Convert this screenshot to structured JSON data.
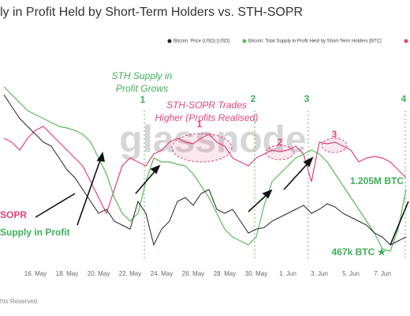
{
  "chart_data": {
    "type": "line",
    "title": "ly in Profit Held by Short-Term Holders vs. STH-SOPR",
    "footer": "hts Reserved.",
    "categories": [
      null,
      null,
      null,
      null,
      "16. May",
      null,
      null,
      null,
      "18. May",
      null,
      null,
      null,
      "20. May",
      null,
      null,
      null,
      "22. May",
      null,
      null,
      null,
      "24. May",
      null,
      null,
      null,
      "26. May",
      null,
      null,
      null,
      "28. May",
      null,
      null,
      null,
      "30. May",
      null,
      null,
      null,
      "1. Jun",
      null,
      null,
      null,
      "3. Jun",
      null,
      null,
      null,
      "5. Jun",
      null,
      null,
      null,
      "7. Jun",
      null,
      null,
      null
    ],
    "ylim": [
      0,
      270
    ],
    "series": [
      {
        "name": "Bitcoin: Price (USD) [USD]",
        "color": "#222222",
        "values": [
          210,
          195,
          180,
          170,
          160,
          150,
          145,
          130,
          115,
          105,
          90,
          75,
          60,
          65,
          50,
          45,
          40,
          75,
          60,
          20,
          40,
          50,
          75,
          80,
          70,
          85,
          90,
          65,
          60,
          65,
          50,
          35,
          40,
          42,
          50,
          55,
          60,
          65,
          70,
          60,
          65,
          72,
          68,
          60,
          55,
          50,
          45,
          35,
          30,
          20,
          25,
          30
        ]
      },
      {
        "name": "Bitcoin: Total Supply in Profit Held by Short-Term Holders [BTC]",
        "color": "#5cb85c",
        "values": [
          220,
          210,
          200,
          190,
          185,
          180,
          175,
          170,
          168,
          165,
          160,
          150,
          130,
          110,
          80,
          60,
          50,
          60,
          100,
          130,
          125,
          125,
          122,
          120,
          110,
          95,
          80,
          60,
          40,
          30,
          25,
          20,
          30,
          70,
          100,
          110,
          120,
          130,
          135,
          140,
          135,
          125,
          110,
          95,
          80,
          65,
          50,
          35,
          15,
          12,
          40,
          90
        ]
      },
      {
        "color": "#e0457b",
        "values": [
          155,
          150,
          140,
          155,
          165,
          170,
          160,
          150,
          140,
          130,
          120,
          100,
          80,
          60,
          90,
          120,
          130,
          125,
          120,
          135,
          140,
          150,
          155,
          150,
          148,
          155,
          160,
          150,
          145,
          130,
          125,
          120,
          130,
          135,
          140,
          138,
          140,
          145,
          135,
          100,
          150,
          148,
          150,
          145,
          140,
          125,
          130,
          132,
          130,
          125,
          115,
          105
        ]
      }
    ],
    "annotations": [
      {
        "text": "STH Supply in",
        "color": "#3fae5a"
      },
      {
        "text": "Profit Grows",
        "color": "#3fae5a"
      },
      {
        "text": "1",
        "color": "#3fae5a"
      },
      {
        "text": "STH-SOPR Trades",
        "color": "#e0457b"
      },
      {
        "text": "Higher (Profits Realised)",
        "color": "#e0457b"
      },
      {
        "text": "1",
        "color": "#e0457b"
      },
      {
        "text": "2",
        "color": "#3fae5a"
      },
      {
        "text": "3",
        "color": "#3fae5a"
      },
      {
        "text": "4",
        "color": "#3fae5a"
      },
      {
        "text": "2",
        "color": "#e0457b"
      },
      {
        "text": "3",
        "color": "#e0457b"
      },
      {
        "text": "1.205M BTC",
        "color": "#3fae5a"
      },
      {
        "text": "467k BTC ★",
        "color": "#3fae5a"
      },
      {
        "text": "SOPR",
        "color": "#e0457b"
      },
      {
        "text": "Supply in Profit",
        "color": "#3fae5a"
      }
    ]
  }
}
